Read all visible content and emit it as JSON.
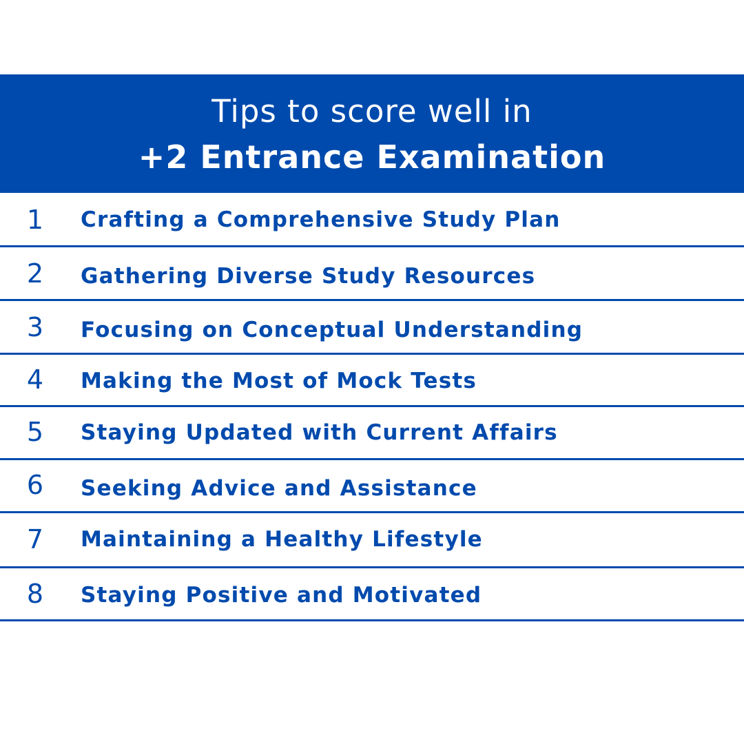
{
  "header": {
    "line1": "Tips to score well in",
    "line2": "+2 Entrance Examination"
  },
  "tips": [
    {
      "number": "1",
      "text": "Crafting a Comprehensive Study Plan"
    },
    {
      "number": "2",
      "text": "Gathering Diverse Study Resources"
    },
    {
      "number": "3",
      "text": "Focusing on Conceptual Understanding"
    },
    {
      "number": "4",
      "text": "Making the Most of Mock Tests"
    },
    {
      "number": "5",
      "text": "Staying Updated with Current Affairs"
    },
    {
      "number": "6",
      "text": "Seeking Advice and Assistance"
    },
    {
      "number": "7",
      "text": "Maintaining a Healthy Lifestyle"
    },
    {
      "number": "8",
      "text": "Staying Positive and Motivated"
    }
  ],
  "colors": {
    "accent": "#004aad",
    "background": "#ffffff",
    "header_text": "#ffffff"
  }
}
